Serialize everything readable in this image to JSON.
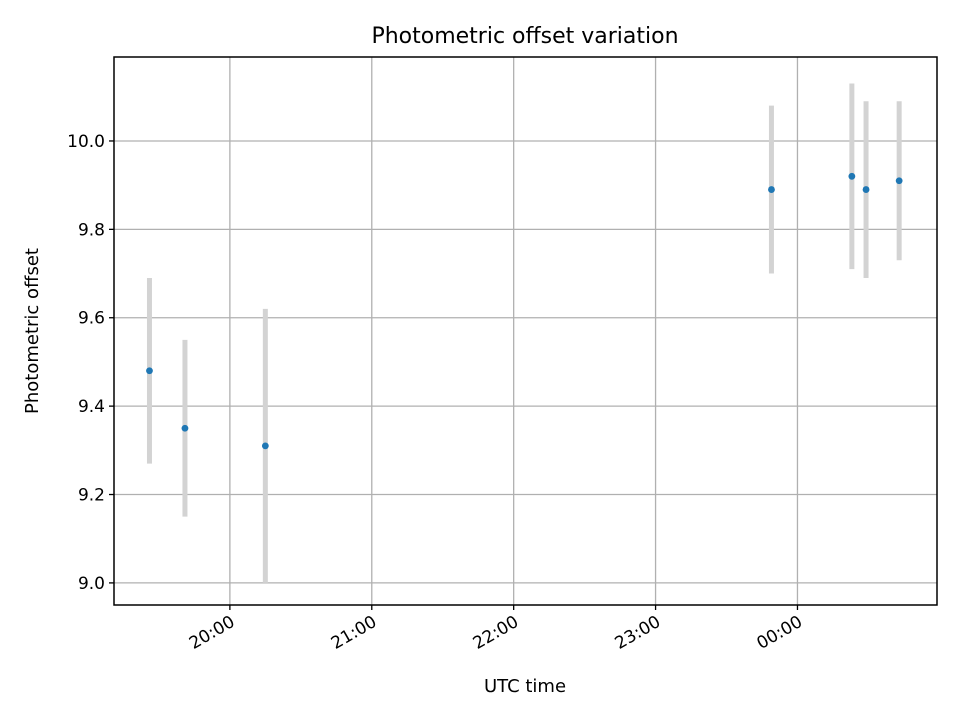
{
  "chart_data": {
    "type": "scatter",
    "title": "Photometric offset variation",
    "xlabel": "UTC time",
    "ylabel": "Photometric offset",
    "grid": true,
    "x_axis": {
      "type": "time",
      "ticks": [
        "20:00",
        "21:00",
        "22:00",
        "23:00",
        "00:00"
      ],
      "range": [
        "19:11",
        "00:59"
      ]
    },
    "ylim": [
      8.95,
      10.19
    ],
    "y_ticks": [
      "9.0",
      "9.2",
      "9.4",
      "9.6",
      "9.8",
      "10.0"
    ],
    "colors": {
      "points": "#1f77b4",
      "errorbars": "#d3d3d3"
    },
    "series": [
      {
        "points": [
          {
            "x": "19:26",
            "y": 9.48,
            "err": 0.21
          },
          {
            "x": "19:41",
            "y": 9.35,
            "err": 0.2
          },
          {
            "x": "20:15",
            "y": 9.31,
            "err": 0.31
          },
          {
            "x": "23:49",
            "y": 9.89,
            "err": 0.19
          },
          {
            "x": "00:23",
            "y": 9.92,
            "err": 0.21
          },
          {
            "x": "00:29",
            "y": 9.89,
            "err": 0.2
          },
          {
            "x": "00:43",
            "y": 9.91,
            "err": 0.18
          }
        ]
      }
    ]
  }
}
